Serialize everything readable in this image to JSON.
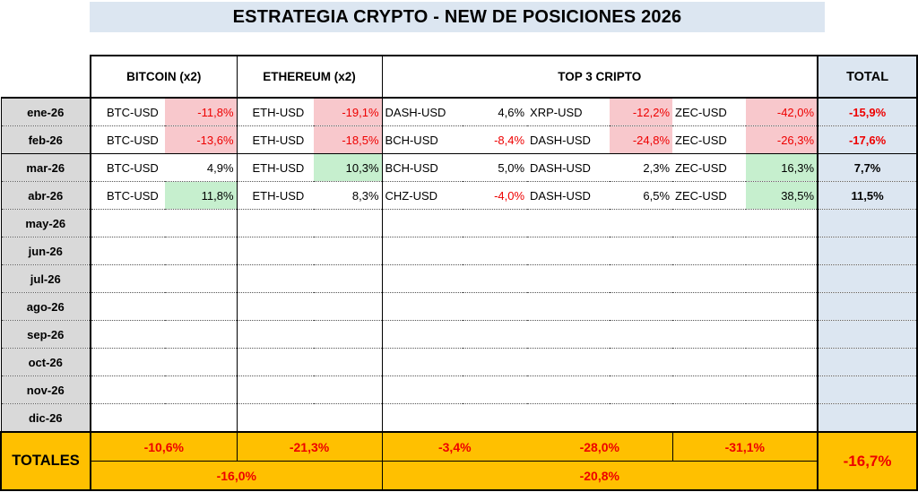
{
  "title": "ESTRATEGIA CRYPTO -  NEW DE POSICIONES 2026",
  "headers": {
    "bitcoin": "BITCOIN  (x2)",
    "ethereum": "ETHEREUM (x2)",
    "top3": "TOP 3 CRIPTO",
    "total": "TOTAL"
  },
  "rows": [
    {
      "month": "ene-26",
      "btc": {
        "pair": "BTC-USD",
        "value": "-11,8%"
      },
      "eth": {
        "pair": "ETH-USD",
        "value": "-19,1%"
      },
      "top": [
        {
          "pair": "DASH-USD",
          "value": "4,6%"
        },
        {
          "pair": "XRP-USD",
          "value": "-12,2%"
        },
        {
          "pair": "ZEC-USD",
          "value": "-42,0%"
        }
      ],
      "total": "-15,9%"
    },
    {
      "month": "feb-26",
      "btc": {
        "pair": "BTC-USD",
        "value": "-13,6%"
      },
      "eth": {
        "pair": "ETH-USD",
        "value": "-18,5%"
      },
      "top": [
        {
          "pair": "BCH-USD",
          "value": "-8,4%"
        },
        {
          "pair": "DASH-USD",
          "value": "-24,8%"
        },
        {
          "pair": "ZEC-USD",
          "value": "-26,3%"
        }
      ],
      "total": "-17,6%"
    },
    {
      "month": "mar-26",
      "btc": {
        "pair": "BTC-USD",
        "value": "4,9%"
      },
      "eth": {
        "pair": "ETH-USD",
        "value": "10,3%"
      },
      "top": [
        {
          "pair": "BCH-USD",
          "value": "5,0%"
        },
        {
          "pair": "DASH-USD",
          "value": "2,3%"
        },
        {
          "pair": "ZEC-USD",
          "value": "16,3%"
        }
      ],
      "total": "7,7%"
    },
    {
      "month": "abr-26",
      "btc": {
        "pair": "BTC-USD",
        "value": "11,8%"
      },
      "eth": {
        "pair": "ETH-USD",
        "value": "8,3%"
      },
      "top": [
        {
          "pair": "CHZ-USD",
          "value": "-4,0%"
        },
        {
          "pair": "DASH-USD",
          "value": "6,5%"
        },
        {
          "pair": "ZEC-USD",
          "value": "38,5%"
        }
      ],
      "total": "11,5%"
    }
  ],
  "empty_months": [
    "may-26",
    "jun-26",
    "jul-26",
    "ago-26",
    "sep-26",
    "oct-26",
    "nov-26",
    "dic-26"
  ],
  "totals": {
    "label": "TOTALES",
    "btc": "-10,6%",
    "eth": "-21,3%",
    "top1": "-3,4%",
    "top2": "-28,0%",
    "top3": "-31,1%",
    "btc_eth": "-16,0%",
    "top_combined": "-20,8%",
    "grand": "-16,7%"
  },
  "colors": {
    "header_bg": "#dce6f1",
    "month_bg": "#d9d9d9",
    "negative_highlight": "#f8c8cc",
    "positive_highlight": "#c6efce",
    "negative_text": "#ee0000",
    "totals_bg": "#ffc000"
  }
}
